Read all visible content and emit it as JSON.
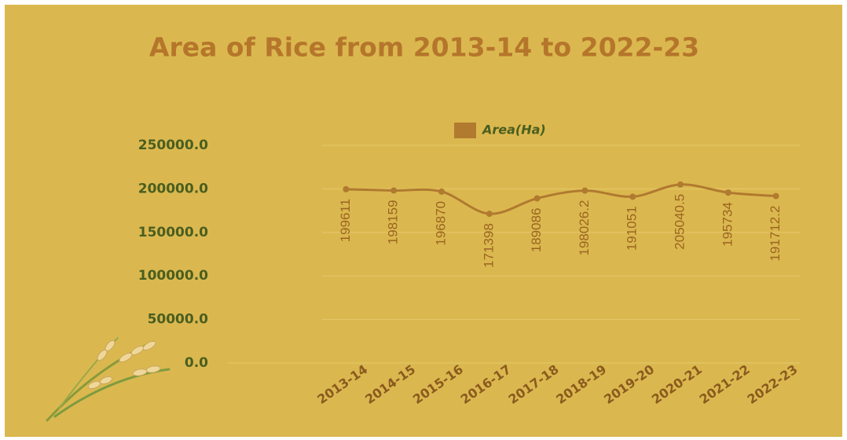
{
  "chart_data": {
    "type": "line",
    "title": "Area of Rice from 2013-14 to 2022-23",
    "categories": [
      "2013-14",
      "2014-15",
      "2015-16",
      "2016-17",
      "2017-18",
      "2018-19",
      "2019-20",
      "2020-21",
      "2021-22",
      "2022-23"
    ],
    "series": [
      {
        "name": "Area(Ha)",
        "color": "#b07a2f",
        "values": [
          199611,
          198159,
          196870,
          171398,
          189086,
          198026.2,
          191051,
          205040.5,
          195734,
          191712.2
        ]
      }
    ],
    "ylim": [
      0,
      250000
    ],
    "yticks": [
      {
        "value": 0,
        "label": "0.0"
      },
      {
        "value": 50000,
        "label": "50000.0"
      },
      {
        "value": 100000,
        "label": "100000.0"
      },
      {
        "value": 150000,
        "label": "150000.0"
      },
      {
        "value": 200000,
        "label": "200000.0"
      },
      {
        "value": 250000,
        "label": "250000.0"
      }
    ],
    "grid": true
  }
}
